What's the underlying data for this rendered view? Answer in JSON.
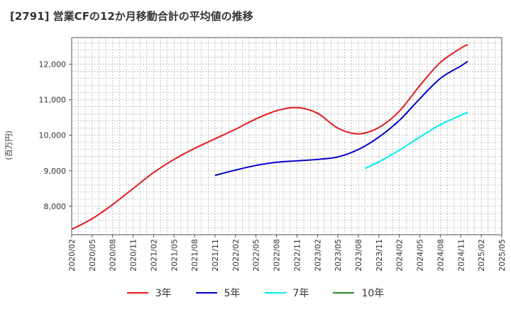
{
  "title": "[2791]  営業CFの12か月移動合計の平均値の推移",
  "chart_data": {
    "type": "line",
    "title": "[2791]  営業CFの12か月移動合計の平均値の推移",
    "ylabel": "(百万円)",
    "xlabel": "",
    "ylim": [
      7200,
      12750
    ],
    "yticks": [
      8000,
      9000,
      10000,
      11000,
      12000
    ],
    "ytick_labels": [
      "8,000",
      "9,000",
      "10,000",
      "11,000",
      "12,000"
    ],
    "xlim": [
      "2020-02",
      "2025-05"
    ],
    "xtick_labels": [
      "2020/02",
      "2020/05",
      "2020/08",
      "2020/11",
      "2021/02",
      "2021/05",
      "2021/08",
      "2021/11",
      "2022/02",
      "2022/05",
      "2022/08",
      "2022/11",
      "2023/02",
      "2023/05",
      "2023/08",
      "2023/11",
      "2024/02",
      "2024/05",
      "2024/08",
      "2024/11",
      "2025/02",
      "2025/05"
    ],
    "grid": true,
    "legend_position": "bottom",
    "series": [
      {
        "name": "3年",
        "color": "#e31a1c",
        "x": [
          "2020-02",
          "2020-05",
          "2020-08",
          "2020-11",
          "2021-02",
          "2021-05",
          "2021-08",
          "2021-11",
          "2022-02",
          "2022-05",
          "2022-08",
          "2022-11",
          "2023-02",
          "2023-05",
          "2023-08",
          "2023-11",
          "2024-02",
          "2024-05",
          "2024-08",
          "2024-11",
          "2024-12"
        ],
        "values": [
          7350,
          7650,
          8050,
          8500,
          8950,
          9320,
          9630,
          9900,
          10170,
          10460,
          10690,
          10780,
          10620,
          10200,
          10040,
          10220,
          10680,
          11400,
          12050,
          12450,
          12550
        ]
      },
      {
        "name": "5年",
        "color": "#0000cc",
        "x": [
          "2021-11",
          "2022-02",
          "2022-05",
          "2022-08",
          "2022-11",
          "2023-02",
          "2023-05",
          "2023-08",
          "2023-11",
          "2024-02",
          "2024-05",
          "2024-08",
          "2024-11",
          "2024-12"
        ],
        "values": [
          8870,
          9020,
          9150,
          9240,
          9280,
          9320,
          9390,
          9600,
          9950,
          10420,
          11030,
          11600,
          11950,
          12080
        ]
      },
      {
        "name": "7年",
        "color": "#00eeee",
        "x": [
          "2023-09",
          "2023-11",
          "2024-02",
          "2024-05",
          "2024-08",
          "2024-11",
          "2024-12"
        ],
        "values": [
          9070,
          9250,
          9580,
          9950,
          10300,
          10560,
          10650
        ]
      },
      {
        "name": "10年",
        "color": "#228b22",
        "x": [],
        "values": []
      }
    ]
  }
}
